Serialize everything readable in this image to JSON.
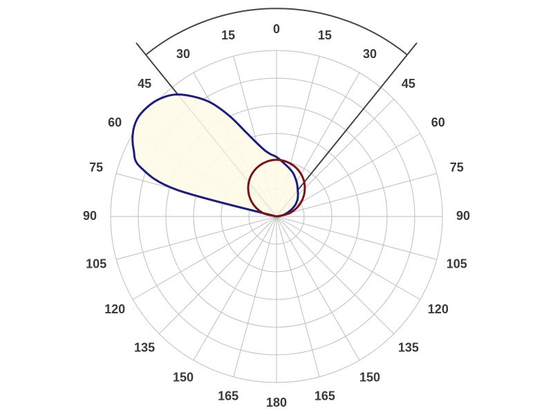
{
  "chart_data": {
    "type": "polar",
    "angle_ticks": [
      0,
      15,
      30,
      45,
      60,
      75,
      90,
      105,
      120,
      135,
      150,
      165,
      180
    ],
    "rlim": [
      0,
      240
    ],
    "rticks": [
      40,
      80,
      120,
      160,
      200,
      240
    ],
    "grid": true,
    "series": [
      {
        "color": "#1c1c80",
        "fill": "#fffbe8",
        "x": [
          -80,
          -75,
          -70,
          -65,
          -60,
          -55,
          -50,
          -45,
          -40,
          -35,
          -30,
          -25,
          -20,
          -15,
          -10,
          -5,
          0,
          10,
          20,
          30,
          40,
          50,
          60,
          70,
          80,
          90
        ],
        "values": [
          0,
          150,
          210,
          228,
          240,
          246,
          245,
          240,
          230,
          212,
          190,
          160,
          130,
          110,
          97,
          90,
          86,
          76,
          68,
          58,
          48,
          40,
          30,
          18,
          8,
          0
        ]
      },
      {
        "color": "#7a1414",
        "x": [
          -90,
          -75,
          -60,
          -45,
          -30,
          -15,
          0,
          15,
          30,
          45,
          60,
          75,
          90
        ],
        "values": [
          0,
          21,
          41,
          58,
          71,
          79,
          82,
          79,
          71,
          58,
          41,
          21,
          0
        ]
      }
    ]
  }
}
